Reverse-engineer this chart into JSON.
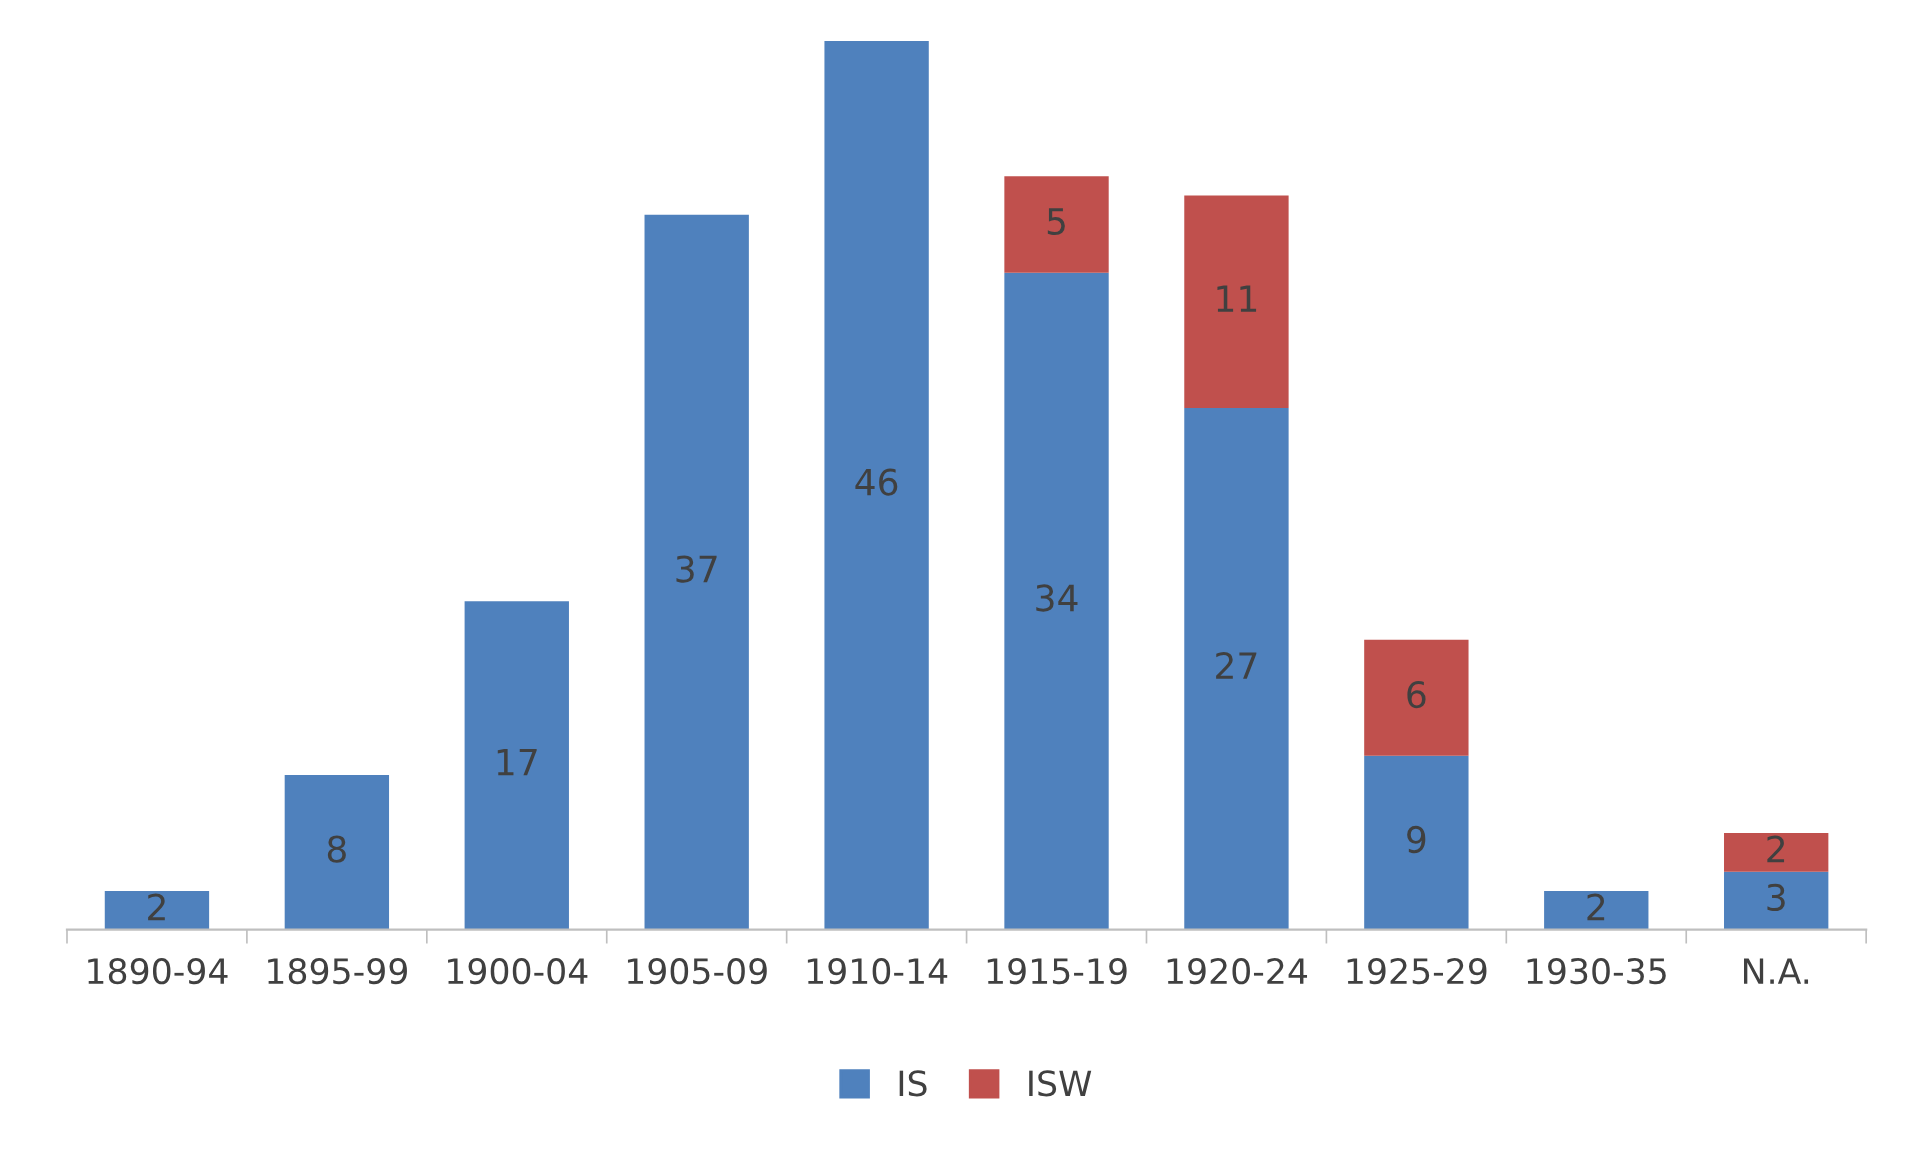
{
  "chart_data": {
    "type": "bar",
    "stacked": true,
    "data_labels": true,
    "grid": false,
    "legend": "bottom",
    "categories": [
      "1890-94",
      "1895-99",
      "1900-04",
      "1905-09",
      "1910-14",
      "1915-19",
      "1920-24",
      "1925-29",
      "1930-35",
      "N.A."
    ],
    "series": [
      {
        "name": "IS",
        "color": "#4f81bd",
        "values": [
          2,
          8,
          17,
          37,
          46,
          34,
          27,
          9,
          2,
          3
        ]
      },
      {
        "name": "ISW",
        "color": "#c0504d",
        "values": [
          null,
          null,
          null,
          null,
          null,
          5,
          11,
          6,
          null,
          2
        ]
      }
    ]
  }
}
